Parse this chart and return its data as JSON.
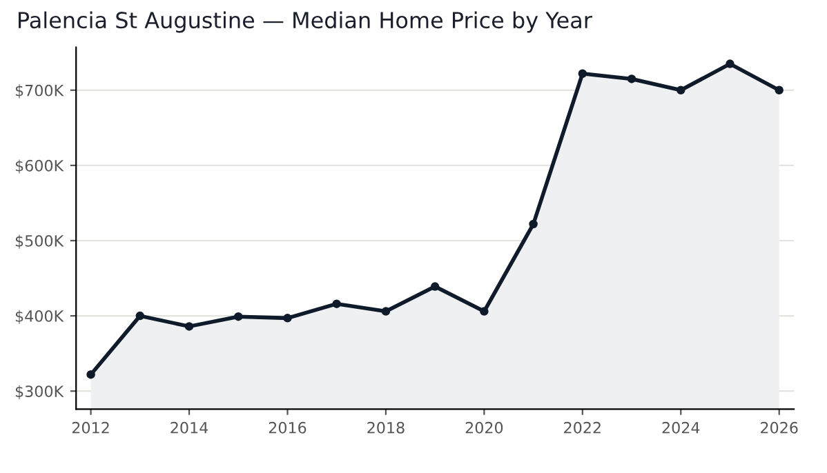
{
  "chart_data": {
    "type": "area",
    "title": "Palencia St Augustine — Median Home Price by Year",
    "x": [
      2012,
      2013,
      2014,
      2015,
      2016,
      2017,
      2018,
      2019,
      2020,
      2021,
      2022,
      2023,
      2024,
      2025,
      2026
    ],
    "series": [
      {
        "color": "#0f1a2a",
        "values": [
          322,
          400,
          386,
          399,
          397,
          416,
          406,
          439,
          406,
          522,
          722,
          715,
          700,
          735,
          700
        ]
      }
    ],
    "marker": "circle",
    "line_style": "solid",
    "xlim": [
      2011.7,
      2026.3
    ],
    "xticks": [
      2012,
      2014,
      2016,
      2018,
      2020,
      2022,
      2024,
      2026
    ],
    "ylim": [
      276,
      757
    ],
    "yticks": [
      {
        "value": 300,
        "label": "$300K"
      },
      {
        "value": 400,
        "label": "$400K"
      },
      {
        "value": 500,
        "label": "$500K"
      },
      {
        "value": 600,
        "label": "$600K"
      },
      {
        "value": 700,
        "label": "$700K"
      }
    ],
    "grid": "y"
  }
}
